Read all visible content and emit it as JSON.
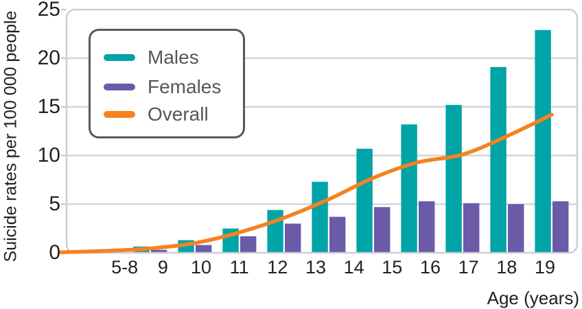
{
  "chart_data": {
    "type": "bar",
    "title": "",
    "ylabel": "Suicide rates per 100 000 people",
    "xlabel": "Age (years)",
    "categories": [
      "5-8",
      "9",
      "10",
      "11",
      "12",
      "13",
      "14",
      "15",
      "16",
      "17",
      "18",
      "19"
    ],
    "series": [
      {
        "name": "Males",
        "type": "bar",
        "color": "#00a4a7",
        "values": [
          0.05,
          0.25,
          0.65,
          1.3,
          2.5,
          4.4,
          7.3,
          10.7,
          13.2,
          15.2,
          19.1,
          22.9
        ]
      },
      {
        "name": "Females",
        "type": "bar",
        "color": "#6a5aa8",
        "values": [
          0.03,
          0.15,
          0.3,
          0.8,
          1.7,
          3.0,
          3.7,
          4.7,
          5.3,
          5.1,
          5.0,
          5.3
        ]
      },
      {
        "name": "Overall",
        "type": "line",
        "color": "#f5821f",
        "values": [
          0.05,
          0.2,
          0.45,
          1.0,
          2.1,
          3.6,
          5.5,
          7.7,
          9.3,
          10.1,
          12.0,
          14.2
        ]
      }
    ],
    "ylim": [
      0,
      25
    ],
    "yticks": [
      0,
      5,
      10,
      15,
      20,
      25
    ],
    "grid": "horizontal",
    "legend_position": "top-left"
  },
  "colors": {
    "grid": "#d2d3dc",
    "frame": "#cdced8",
    "tick_mark": "#c9cad4",
    "axis_text": "#231f20",
    "legend_text": "#54565a",
    "legend_border": "#58585a",
    "background": "#ffffff"
  }
}
